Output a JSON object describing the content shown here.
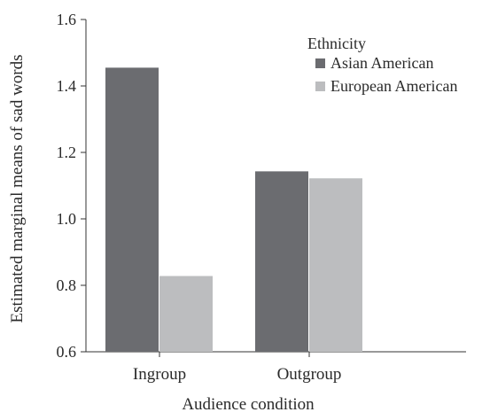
{
  "chart_data": {
    "type": "bar",
    "title": "",
    "xlabel": "Audience condition",
    "ylabel": "Estimated marginal means of sad words",
    "categories": [
      "Ingroup",
      "Outgroup"
    ],
    "series": [
      {
        "name": "Asian American",
        "values": [
          1.455,
          1.143
        ],
        "color": "#6b6c70"
      },
      {
        "name": "European American",
        "values": [
          0.828,
          1.122
        ],
        "color": "#bcbdbf"
      }
    ],
    "ylim": [
      0.6,
      1.6
    ],
    "yticks": [
      "0.6",
      "0.8",
      "1.0",
      "1.2",
      "1.4",
      "1.6"
    ],
    "legend": {
      "title": "Ethnicity",
      "position": "top-right"
    },
    "grid": false
  }
}
